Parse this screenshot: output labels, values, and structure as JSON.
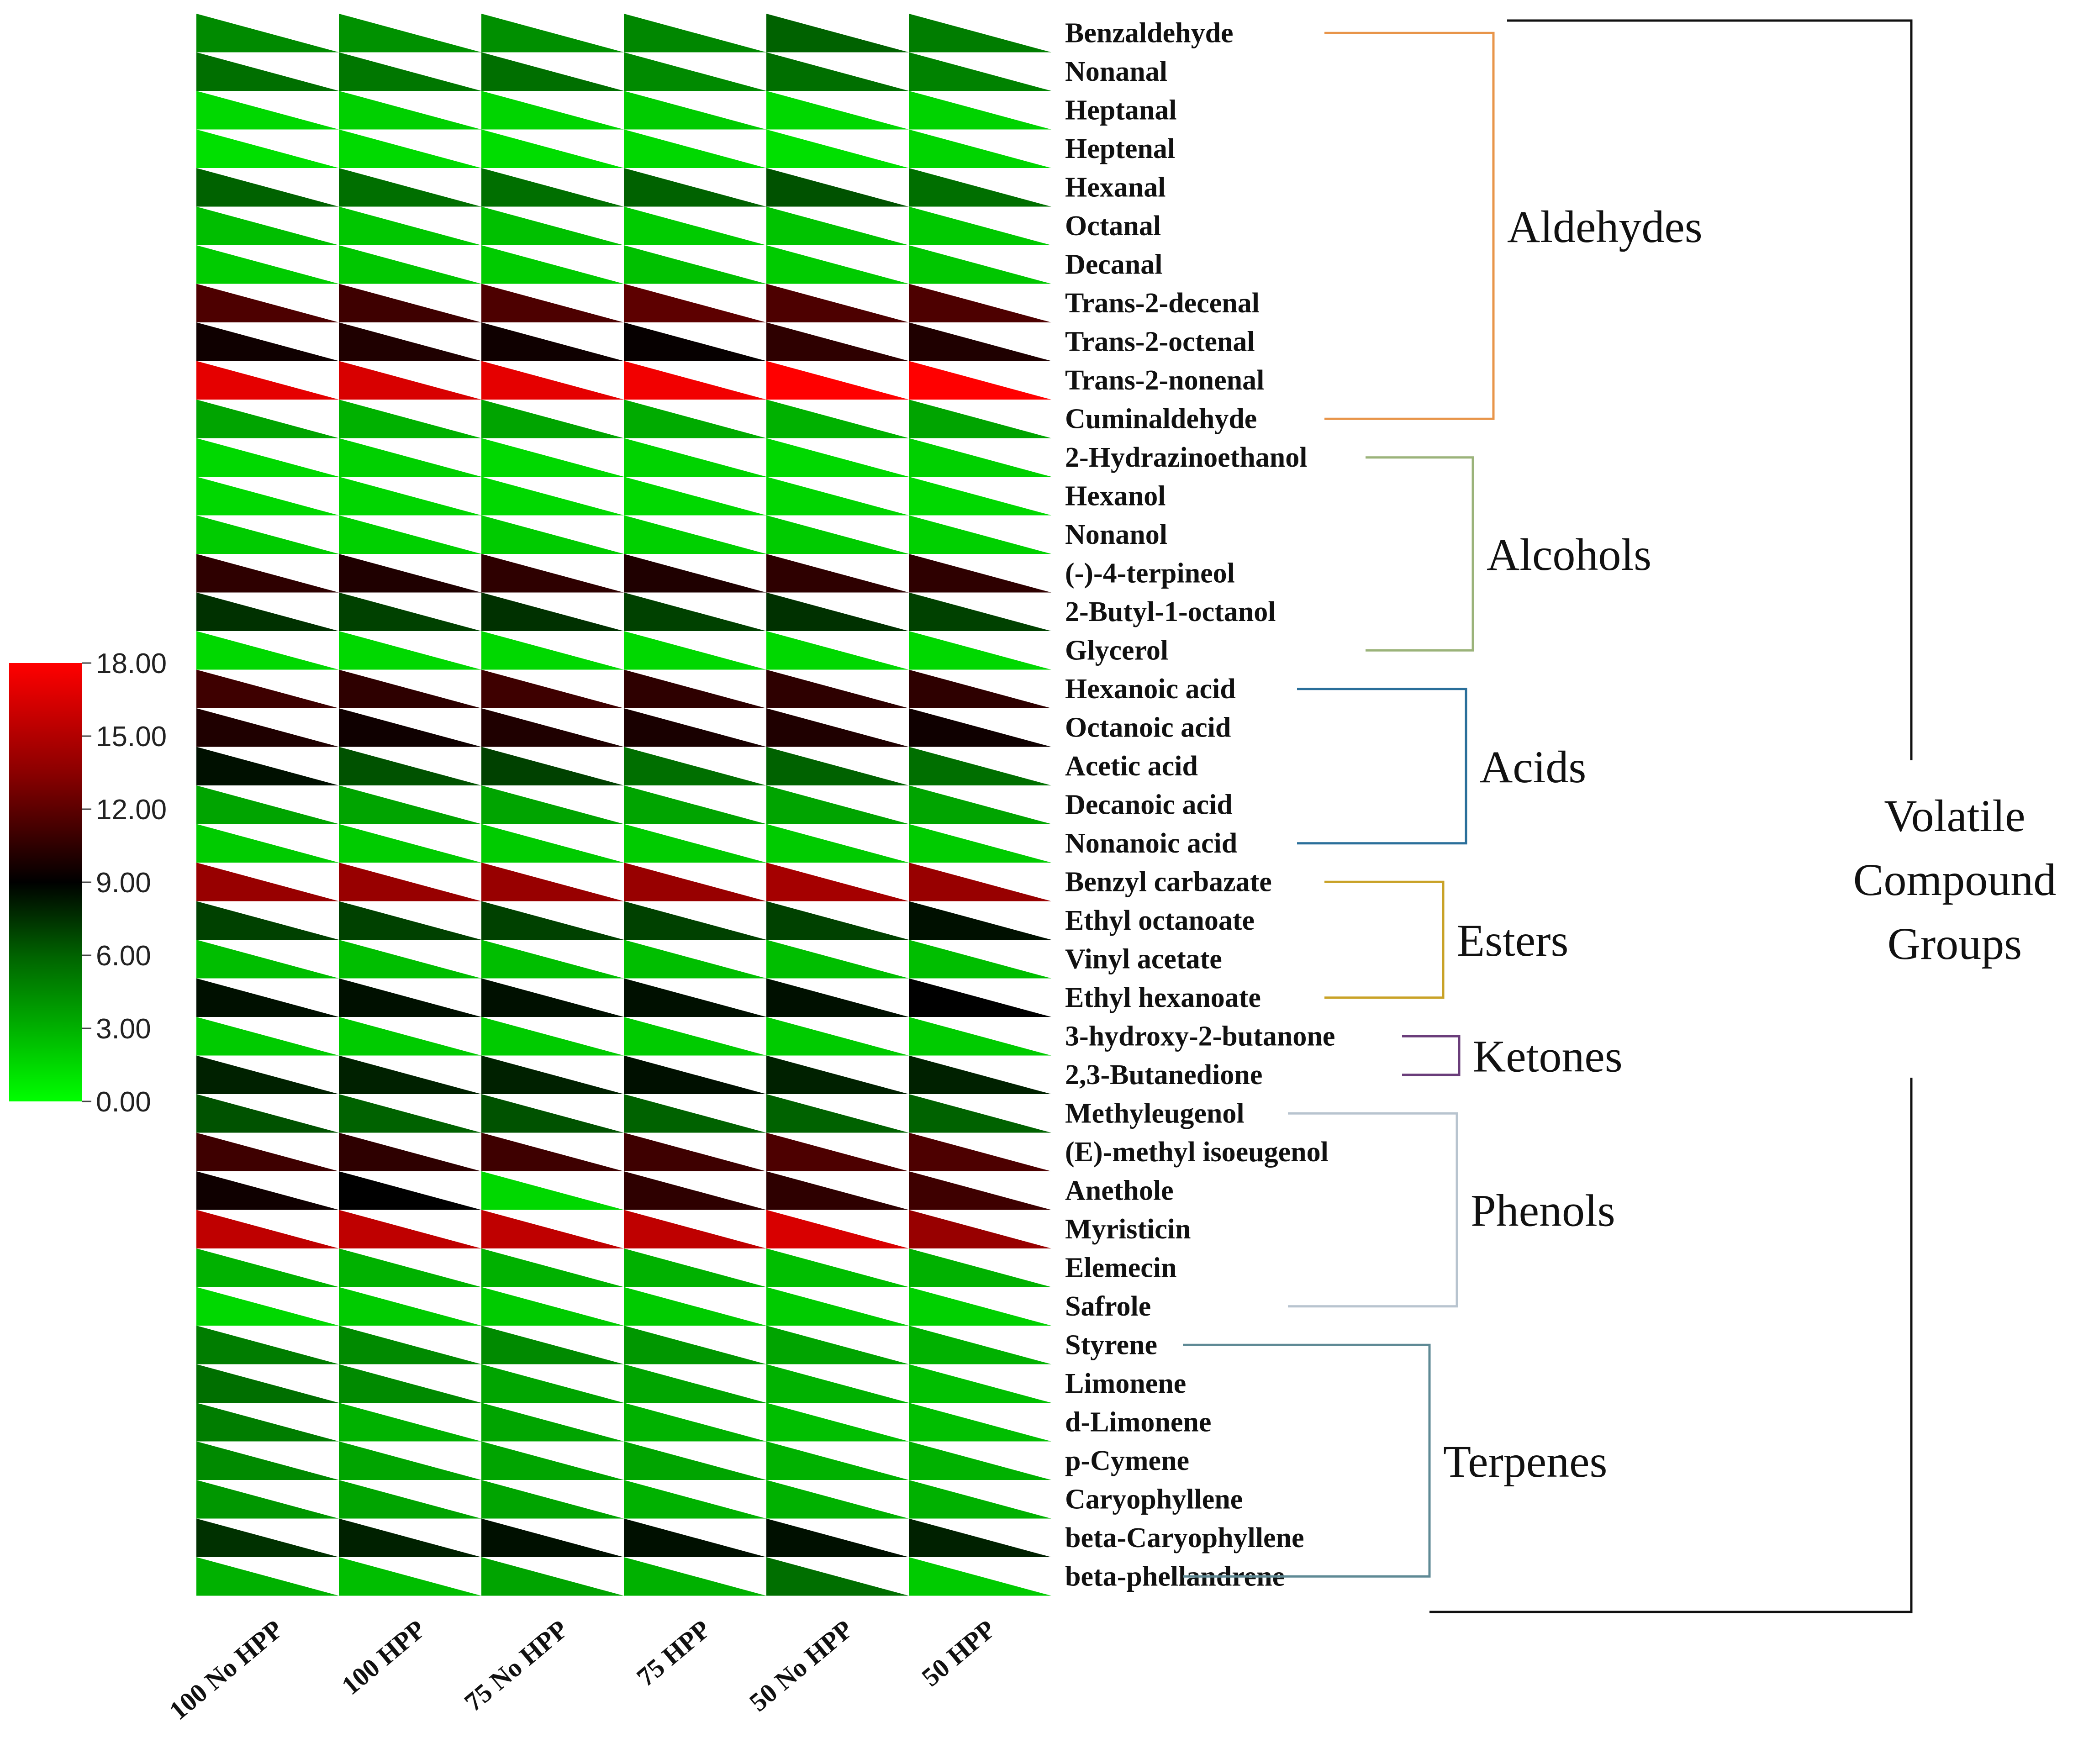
{
  "chart_data": {
    "type": "heatmap",
    "title": "",
    "cell_style": "split-triangle",
    "columns": [
      "100 No HPP",
      "100  HPP",
      "75 No HPP",
      "75 HPP",
      "50 No HPP",
      "50 HPP"
    ],
    "rows": [
      "Benzaldehyde",
      "Nonanal",
      "Heptanal",
      "Heptenal",
      "Hexanal",
      "Octanal",
      "Decanal",
      "Trans-2-decenal",
      "Trans-2-octenal",
      "Trans-2-nonenal",
      "Cuminaldehyde",
      "2-Hydrazinoethanol",
      "Hexanol",
      "Nonanol",
      "(-)-4-terpineol",
      "2-Butyl-1-octanol",
      "Glycerol",
      "Hexanoic acid",
      "Octanoic acid",
      "Acetic acid",
      "Decanoic acid",
      "Nonanoic acid",
      "Benzyl carbazate",
      "Ethyl octanoate",
      "Vinyl acetate",
      "Ethyl hexanoate",
      "3-hydroxy-2-butanone",
      "2,3-Butanedione",
      "Methyleugenol",
      "(E)-methyl isoeugenol",
      "Anethole",
      "Myristicin",
      "Elemecin",
      "Safrole",
      "Styrene",
      "Limonene",
      "d-Limonene",
      "p-Cymene",
      "Caryophyllene",
      "beta-Caryophyllene",
      "beta-phellandrene"
    ],
    "values": [
      [
        4.5,
        4.2,
        4.3,
        4.6,
        6.0,
        5.0
      ],
      [
        5.5,
        5.2,
        5.5,
        4.5,
        5.5,
        4.8
      ],
      [
        1.5,
        1.8,
        1.6,
        2.0,
        1.5,
        1.7
      ],
      [
        1.2,
        1.4,
        1.3,
        1.5,
        1.2,
        1.6
      ],
      [
        6.0,
        5.5,
        5.5,
        6.0,
        6.5,
        5.5
      ],
      [
        2.5,
        2.2,
        2.4,
        2.0,
        2.3,
        2.1
      ],
      [
        2.0,
        2.2,
        2.0,
        2.4,
        2.0,
        2.2
      ],
      [
        11.5,
        11.0,
        11.5,
        12.0,
        11.5,
        11.5
      ],
      [
        9.5,
        10.0,
        9.5,
        9.2,
        10.5,
        10.0
      ],
      [
        17.0,
        16.5,
        17.0,
        17.5,
        18.0,
        18.0
      ],
      [
        3.5,
        3.0,
        3.5,
        3.2,
        3.0,
        3.5
      ],
      [
        1.5,
        1.8,
        1.5,
        1.7,
        1.5,
        1.8
      ],
      [
        1.5,
        1.6,
        1.5,
        1.5,
        1.6,
        1.5
      ],
      [
        2.0,
        1.8,
        2.0,
        1.8,
        2.0,
        1.8
      ],
      [
        10.5,
        10.0,
        10.5,
        10.0,
        10.5,
        10.5
      ],
      [
        7.5,
        7.0,
        7.5,
        7.0,
        7.5,
        7.0
      ],
      [
        1.5,
        1.5,
        1.5,
        1.5,
        1.5,
        1.5
      ],
      [
        11.0,
        10.5,
        11.0,
        10.5,
        10.5,
        10.5
      ],
      [
        10.0,
        9.5,
        10.0,
        9.8,
        10.0,
        9.5
      ],
      [
        8.5,
        6.5,
        7.0,
        5.5,
        6.0,
        5.5
      ],
      [
        3.5,
        3.5,
        3.5,
        3.5,
        3.5,
        3.5
      ],
      [
        2.0,
        2.0,
        2.0,
        2.0,
        2.0,
        2.0
      ],
      [
        14.0,
        14.0,
        14.0,
        14.0,
        14.5,
        14.0
      ],
      [
        7.0,
        7.0,
        7.0,
        7.0,
        7.0,
        8.5
      ],
      [
        2.5,
        2.5,
        2.5,
        2.5,
        2.5,
        2.5
      ],
      [
        8.5,
        8.5,
        8.5,
        8.5,
        8.5,
        9.0
      ],
      [
        2.0,
        2.0,
        2.0,
        2.0,
        2.0,
        2.0
      ],
      [
        8.0,
        8.0,
        8.0,
        8.5,
        8.0,
        8.0
      ],
      [
        6.5,
        6.0,
        6.5,
        6.0,
        6.0,
        6.0
      ],
      [
        11.0,
        10.5,
        11.0,
        11.0,
        11.5,
        11.5
      ],
      [
        9.5,
        9.0,
        1.5,
        10.5,
        10.5,
        11.0
      ],
      [
        15.5,
        15.5,
        15.5,
        15.5,
        16.5,
        14.0
      ],
      [
        3.0,
        3.0,
        3.0,
        3.0,
        2.5,
        3.0
      ],
      [
        1.5,
        2.0,
        2.0,
        2.0,
        2.0,
        1.8
      ],
      [
        5.0,
        4.5,
        4.5,
        4.0,
        3.5,
        3.0
      ],
      [
        5.5,
        4.5,
        3.5,
        3.5,
        3.0,
        2.5
      ],
      [
        5.0,
        3.0,
        3.5,
        3.0,
        2.5,
        2.5
      ],
      [
        4.5,
        3.5,
        3.5,
        3.5,
        3.0,
        3.0
      ],
      [
        4.0,
        3.5,
        3.5,
        3.0,
        3.0,
        3.0
      ],
      [
        7.5,
        8.0,
        8.5,
        8.5,
        8.5,
        8.0
      ],
      [
        3.0,
        2.5,
        3.5,
        3.0,
        5.5,
        2.0
      ]
    ],
    "color_scale": {
      "min": 0,
      "max": 18,
      "stops": [
        "#00ff00",
        "#006400",
        "#000000",
        "#8b0000",
        "#ff0000"
      ],
      "tick_labels": [
        "18.00",
        "15.00",
        "12.00",
        "9.00",
        "6.00",
        "3.00",
        "0.00"
      ]
    },
    "groups": [
      {
        "name": "Aldehydes",
        "start": 0,
        "end": 10,
        "color": "#e8954a"
      },
      {
        "name": "Alcohols",
        "start": 11,
        "end": 16,
        "color": "#9bb37a"
      },
      {
        "name": "Acids",
        "start": 17,
        "end": 21,
        "color": "#2a6f9a"
      },
      {
        "name": "Esters",
        "start": 22,
        "end": 25,
        "color": "#c9a227"
      },
      {
        "name": "Ketones",
        "start": 26,
        "end": 27,
        "color": "#6a3d7a"
      },
      {
        "name": "Phenols",
        "start": 28,
        "end": 33,
        "color": "#b8c4cf"
      },
      {
        "name": "Terpenes",
        "start": 34,
        "end": 40,
        "color": "#5f8a95"
      }
    ],
    "group_title_lines": [
      "Volatile",
      "Compound",
      "Groups"
    ]
  }
}
